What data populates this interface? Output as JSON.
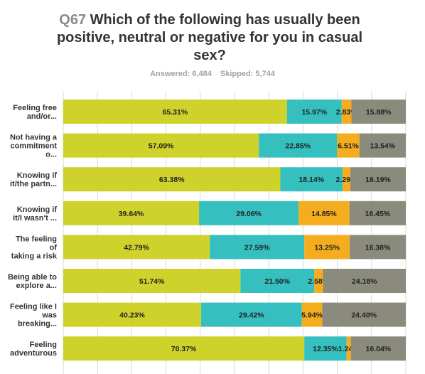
{
  "header": {
    "question_number": "Q67",
    "question_text": "Which of the following has usually been positive, neutral or negative for you in casual sex?",
    "answered": "Answered: 6,484",
    "skipped": "Skipped: 5,744"
  },
  "colors": {
    "positive": "#cfd22b",
    "neutral": "#36bfbf",
    "negative": "#f5ad1f",
    "other": "#8a8a7d",
    "grid": "#d8d8d8"
  },
  "chart_data": {
    "type": "bar",
    "orientation": "horizontal",
    "stacked": true,
    "title": "Which of the following has usually been positive, neutral or negative for you in casual sex?",
    "xlim": [
      0,
      100
    ],
    "grid": true,
    "categories": [
      [
        "Feeling free",
        "and/or..."
      ],
      [
        "Not having a",
        "commitment",
        "o..."
      ],
      [
        "Knowing if",
        "it/the partn..."
      ],
      [
        "Knowing if",
        "it/I wasn't ..."
      ],
      [
        "The feeling",
        "of",
        "taking a risk"
      ],
      [
        "Being able to",
        "explore a..."
      ],
      [
        "Feeling like I",
        "was",
        "breaking..."
      ],
      [
        "Feeling",
        "adventurous"
      ]
    ],
    "series": [
      {
        "values": [
          65.31,
          57.09,
          63.38,
          39.64,
          42.79,
          51.74,
          40.23,
          70.37
        ],
        "labels": [
          "65.31%",
          "57.09%",
          "63.38%",
          "39.64%",
          "42.79%",
          "51.74%",
          "40.23%",
          "70.37%"
        ]
      },
      {
        "values": [
          15.97,
          22.85,
          18.14,
          29.06,
          27.59,
          21.5,
          29.42,
          12.35
        ],
        "labels": [
          "15.97%",
          "22.85%",
          "18.14%",
          "29.06%",
          "27.59%",
          "21.50%",
          "29.42%",
          "12.35%"
        ]
      },
      {
        "values": [
          2.83,
          6.51,
          2.29,
          14.85,
          13.25,
          2.58,
          5.94,
          1.24
        ],
        "labels": [
          "2.83%",
          "6.51%",
          "2.29%",
          "14.85%",
          "13.25%",
          "2.58%",
          "5.94%",
          "1.24%"
        ]
      },
      {
        "values": [
          15.88,
          13.54,
          16.19,
          16.45,
          16.38,
          24.18,
          24.4,
          16.04
        ],
        "labels": [
          "15.88%",
          "13.54%",
          "16.19%",
          "16.45%",
          "16.38%",
          "24.18%",
          "24.40%",
          "16.04%"
        ]
      }
    ]
  }
}
